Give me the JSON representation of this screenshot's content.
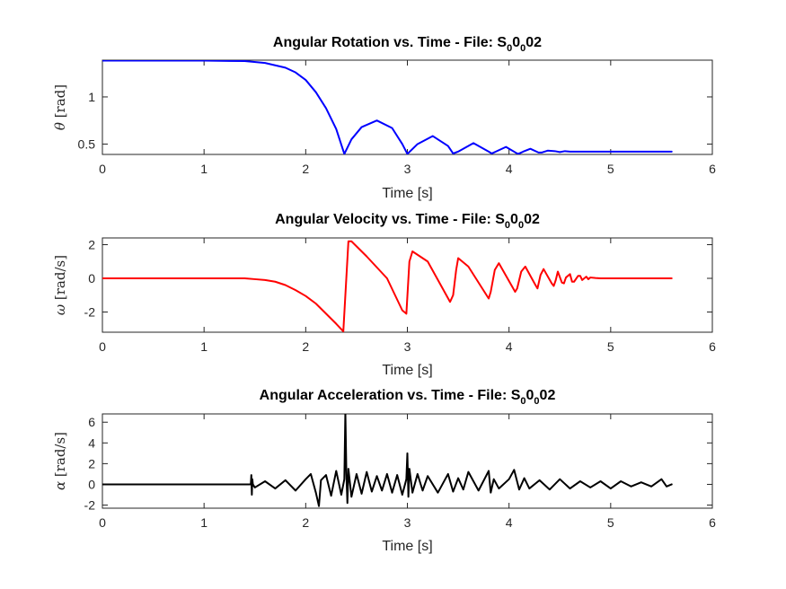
{
  "chart_data": [
    {
      "type": "line",
      "title_main": "Angular Rotation vs. Time - File: S",
      "title_sub1": "0",
      "title_mid": "0",
      "title_sub2": "0",
      "title_end": "02",
      "xlabel": "Time [s]",
      "ylabel_symbol": "θ",
      "ylabel_unit": " [rad]",
      "xlim": [
        0,
        6
      ],
      "ylim": [
        0.39,
        1.39
      ],
      "xticks": [
        "0",
        "1",
        "2",
        "3",
        "4",
        "5",
        "6"
      ],
      "xtick_values": [
        0,
        1,
        2,
        3,
        4,
        5,
        6
      ],
      "yticks": [
        "0.5",
        "1"
      ],
      "ytick_values": [
        0.5,
        1.0
      ],
      "color": "#0000ff",
      "series": [
        {
          "name": "theta",
          "x": [
            0,
            0.5,
            1.0,
            1.4,
            1.6,
            1.8,
            1.9,
            2.0,
            2.1,
            2.2,
            2.3,
            2.38,
            2.45,
            2.55,
            2.7,
            2.85,
            2.95,
            3.0,
            3.1,
            3.25,
            3.4,
            3.45,
            3.5,
            3.65,
            3.8,
            3.83,
            3.87,
            3.97,
            4.08,
            4.1,
            4.14,
            4.21,
            4.29,
            4.32,
            4.38,
            4.45,
            4.5,
            4.55,
            4.6,
            4.65,
            4.7,
            4.8,
            5.0,
            5.3,
            5.6
          ],
          "y": [
            1.385,
            1.385,
            1.385,
            1.38,
            1.36,
            1.31,
            1.26,
            1.18,
            1.05,
            0.88,
            0.66,
            0.395,
            0.55,
            0.68,
            0.75,
            0.67,
            0.5,
            0.395,
            0.5,
            0.585,
            0.48,
            0.4,
            0.42,
            0.51,
            0.42,
            0.4,
            0.42,
            0.47,
            0.4,
            0.4,
            0.42,
            0.45,
            0.41,
            0.41,
            0.43,
            0.425,
            0.415,
            0.425,
            0.42,
            0.42,
            0.42,
            0.42,
            0.42,
            0.42,
            0.42
          ]
        }
      ]
    },
    {
      "type": "line",
      "title_main": "Angular Velocity vs. Time - File: S",
      "title_sub1": "0",
      "title_mid": "0",
      "title_sub2": "0",
      "title_end": "02",
      "xlabel": "Time [s]",
      "ylabel_symbol": "ω",
      "ylabel_unit": " [rad/s]",
      "xlim": [
        0,
        6
      ],
      "ylim": [
        -3.2,
        2.4
      ],
      "xticks": [
        "0",
        "1",
        "2",
        "3",
        "4",
        "5",
        "6"
      ],
      "xtick_values": [
        0,
        1,
        2,
        3,
        4,
        5,
        6
      ],
      "yticks": [
        "-2",
        "0",
        "2"
      ],
      "ytick_values": [
        -2,
        0,
        2
      ],
      "color": "#ff0000",
      "series": [
        {
          "name": "omega",
          "x": [
            0,
            1.0,
            1.4,
            1.5,
            1.6,
            1.7,
            1.8,
            1.9,
            2.0,
            2.1,
            2.2,
            2.3,
            2.37,
            2.39,
            2.42,
            2.45,
            2.6,
            2.8,
            2.95,
            2.99,
            3.02,
            3.05,
            3.2,
            3.42,
            3.45,
            3.48,
            3.5,
            3.6,
            3.8,
            3.82,
            3.86,
            3.9,
            4.06,
            4.08,
            4.12,
            4.16,
            4.26,
            4.28,
            4.31,
            4.34,
            4.42,
            4.44,
            4.46,
            4.48,
            4.52,
            4.54,
            4.56,
            4.6,
            4.62,
            4.64,
            4.68,
            4.7,
            4.72,
            4.76,
            4.78,
            4.8,
            4.85,
            4.9,
            5.0,
            5.3,
            5.6
          ],
          "y": [
            0,
            0,
            0,
            -0.05,
            -0.1,
            -0.2,
            -0.4,
            -0.7,
            -1.05,
            -1.5,
            -2.1,
            -2.7,
            -3.15,
            -1.0,
            2.2,
            2.2,
            1.3,
            0.0,
            -1.9,
            -2.1,
            1.0,
            1.6,
            1.0,
            -1.4,
            -1.0,
            0.5,
            1.2,
            0.7,
            -1.2,
            -0.8,
            0.5,
            0.9,
            -0.8,
            -0.6,
            0.4,
            0.7,
            -0.4,
            -0.6,
            0.2,
            0.55,
            -0.3,
            -0.45,
            -0.1,
            0.4,
            -0.25,
            -0.3,
            0.05,
            0.25,
            -0.2,
            -0.2,
            0.15,
            0.15,
            -0.1,
            0.1,
            -0.05,
            0.05,
            0.02,
            0,
            0,
            0,
            0
          ]
        }
      ]
    },
    {
      "type": "line",
      "title_main": "Angular Acceleration vs. Time - File: S",
      "title_sub1": "0",
      "title_mid": "0",
      "title_sub2": "0",
      "title_end": "02",
      "xlabel": "Time [s]",
      "ylabel_symbol": "α",
      "ylabel_unit": " [rad/s]",
      "xlim": [
        0,
        6
      ],
      "ylim": [
        -2.3,
        6.8
      ],
      "xticks": [
        "0",
        "1",
        "2",
        "3",
        "4",
        "5",
        "6"
      ],
      "xtick_values": [
        0,
        1,
        2,
        3,
        4,
        5,
        6
      ],
      "yticks": [
        "-2",
        "0",
        "2",
        "4",
        "6"
      ],
      "ytick_values": [
        -2,
        0,
        2,
        4,
        6
      ],
      "color": "#000000",
      "series": [
        {
          "name": "alpha",
          "x": [
            0,
            1.0,
            1.46,
            1.465,
            1.47,
            1.475,
            1.48,
            1.5,
            1.6,
            1.7,
            1.8,
            1.9,
            2.0,
            2.05,
            2.1,
            2.13,
            2.15,
            2.2,
            2.25,
            2.3,
            2.35,
            2.38,
            2.39,
            2.4,
            2.41,
            2.42,
            2.45,
            2.5,
            2.55,
            2.6,
            2.65,
            2.7,
            2.75,
            2.8,
            2.85,
            2.9,
            2.95,
            2.99,
            3.0,
            3.01,
            3.02,
            3.05,
            3.1,
            3.15,
            3.2,
            3.3,
            3.4,
            3.45,
            3.5,
            3.55,
            3.6,
            3.7,
            3.8,
            3.82,
            3.85,
            3.9,
            4.0,
            4.05,
            4.1,
            4.15,
            4.2,
            4.3,
            4.4,
            4.5,
            4.6,
            4.7,
            4.8,
            4.9,
            5.0,
            5.1,
            5.2,
            5.3,
            5.4,
            5.5,
            5.55,
            5.6
          ],
          "y": [
            0,
            0,
            0,
            0.9,
            -1.0,
            0.5,
            0,
            -0.3,
            0.3,
            -0.4,
            0.4,
            -0.6,
            0.5,
            1.0,
            -0.8,
            -2.1,
            0.4,
            0.9,
            -1.1,
            1.3,
            -1.0,
            0.5,
            7.0,
            1.0,
            -1.8,
            1.5,
            -1.2,
            1.0,
            -0.9,
            1.2,
            -0.7,
            0.8,
            -0.6,
            1.0,
            -0.8,
            0.9,
            -1.0,
            0.5,
            3.0,
            -1.2,
            1.5,
            -0.8,
            1.0,
            -0.6,
            0.8,
            -0.8,
            1.0,
            -0.7,
            0.6,
            -0.5,
            1.2,
            -0.6,
            1.3,
            -0.8,
            0.5,
            -0.4,
            0.5,
            1.4,
            -0.5,
            0.6,
            -0.4,
            0.4,
            -0.5,
            0.5,
            -0.4,
            0.3,
            -0.3,
            0.3,
            -0.4,
            0.3,
            -0.2,
            0.2,
            -0.2,
            0.5,
            -0.2,
            0
          ]
        }
      ]
    }
  ]
}
